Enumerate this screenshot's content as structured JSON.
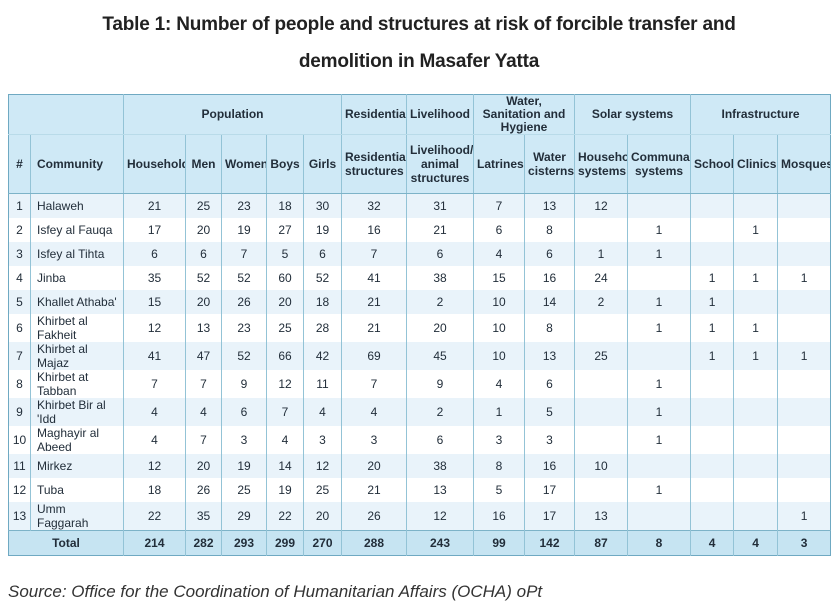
{
  "title": {
    "line1": "Table 1: Number of people and structures at risk of forcible transfer and",
    "line2": "demolition in Masafer Yatta"
  },
  "source": "Source: Office for the Coordination of Humanitarian Affairs (OCHA) oPt",
  "colors": {
    "header_bg": "#cfe9f6",
    "stripe_bg": "#e9f3fa",
    "total_bg": "#c6e4f2",
    "border_outer": "#6fa9c2",
    "text_dark": "#222e3a"
  },
  "table": {
    "groups": [
      {
        "label": "",
        "span": 2
      },
      {
        "label": "Population",
        "span": 5
      },
      {
        "label": "Residential",
        "span": 1
      },
      {
        "label": "Livelihood",
        "span": 1
      },
      {
        "label": "Water, Sanitation and Hygiene",
        "span": 2
      },
      {
        "label": "Solar systems",
        "span": 2
      },
      {
        "label": "Infrastructure",
        "span": 3
      }
    ],
    "columns": [
      "#",
      "Community",
      "Households",
      "Men",
      "Women",
      "Boys",
      "Girls",
      "Residential structures",
      "Livelihood/ animal structures",
      "Latrines",
      "Water cisterns",
      "Household systems",
      "Communal systems",
      "Schools",
      "Clinics",
      "Mosques"
    ],
    "rows": [
      [
        "1",
        "Halaweh",
        "21",
        "25",
        "23",
        "18",
        "30",
        "32",
        "31",
        "7",
        "13",
        "12",
        "",
        "",
        "",
        ""
      ],
      [
        "2",
        "Isfey al Fauqa",
        "17",
        "20",
        "19",
        "27",
        "19",
        "16",
        "21",
        "6",
        "8",
        "",
        "1",
        "",
        "1",
        ""
      ],
      [
        "3",
        "Isfey al Tihta",
        "6",
        "6",
        "7",
        "5",
        "6",
        "7",
        "6",
        "4",
        "6",
        "1",
        "1",
        "",
        "",
        ""
      ],
      [
        "4",
        "Jinba",
        "35",
        "52",
        "52",
        "60",
        "52",
        "41",
        "38",
        "15",
        "16",
        "24",
        "",
        "1",
        "1",
        "1"
      ],
      [
        "5",
        "Khallet Athaba'",
        "15",
        "20",
        "26",
        "20",
        "18",
        "21",
        "2",
        "10",
        "14",
        "2",
        "1",
        "1",
        "",
        ""
      ],
      [
        "6",
        "Khirbet al Fakheit",
        "12",
        "13",
        "23",
        "25",
        "28",
        "21",
        "20",
        "10",
        "8",
        "",
        "1",
        "1",
        "1",
        ""
      ],
      [
        "7",
        "Khirbet al Majaz",
        "41",
        "47",
        "52",
        "66",
        "42",
        "69",
        "45",
        "10",
        "13",
        "25",
        "",
        "1",
        "1",
        "1"
      ],
      [
        "8",
        "Khirbet at Tabban",
        "7",
        "7",
        "9",
        "12",
        "11",
        "7",
        "9",
        "4",
        "6",
        "",
        "1",
        "",
        "",
        ""
      ],
      [
        "9",
        "Khirbet Bir al 'Idd",
        "4",
        "4",
        "6",
        "7",
        "4",
        "4",
        "2",
        "1",
        "5",
        "",
        "1",
        "",
        "",
        ""
      ],
      [
        "10",
        "Maghayir al Abeed",
        "4",
        "7",
        "3",
        "4",
        "3",
        "3",
        "6",
        "3",
        "3",
        "",
        "1",
        "",
        "",
        ""
      ],
      [
        "11",
        "Mirkez",
        "12",
        "20",
        "19",
        "14",
        "12",
        "20",
        "38",
        "8",
        "16",
        "10",
        "",
        "",
        "",
        ""
      ],
      [
        "12",
        "Tuba",
        "18",
        "26",
        "25",
        "19",
        "25",
        "21",
        "13",
        "5",
        "17",
        "",
        "1",
        "",
        "",
        ""
      ],
      [
        "13",
        "Umm Faggarah",
        "22",
        "35",
        "29",
        "22",
        "20",
        "26",
        "12",
        "16",
        "17",
        "13",
        "",
        "",
        "",
        "1"
      ]
    ],
    "total": {
      "label": "Total",
      "values": [
        "214",
        "282",
        "293",
        "299",
        "270",
        "288",
        "243",
        "99",
        "142",
        "87",
        "8",
        "4",
        "4",
        "3"
      ]
    }
  }
}
